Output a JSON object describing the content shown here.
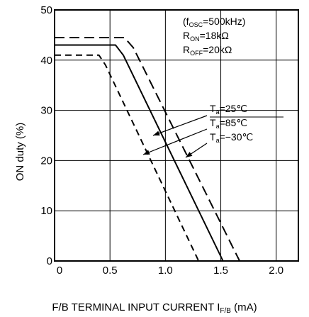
{
  "chart_data": {
    "type": "line",
    "title": "",
    "xlabel": "F/B TERMINAL INPUT CURRENT I",
    "xlabel_sub": "F/B",
    "xlabel_unit": " (mA)",
    "ylabel": "ON duty (%)",
    "xlim": [
      0,
      2.2
    ],
    "ylim": [
      0,
      50
    ],
    "xticks": [
      0,
      0.5,
      1.0,
      1.5,
      2.0
    ],
    "xtick_labels": [
      "0",
      "0.5",
      "1.0",
      "1.5",
      "2.0"
    ],
    "yticks": [
      0,
      10,
      20,
      30,
      40,
      50
    ],
    "ytick_labels": [
      "0",
      "10",
      "20",
      "30",
      "40",
      "50"
    ],
    "grid": true,
    "conditions": [
      {
        "base": "(f",
        "sub": "OSC",
        "rest": "=500kHz)"
      },
      {
        "base": "R",
        "sub": "ON",
        "rest": "=18kΩ"
      },
      {
        "base": "R",
        "sub": "OFF",
        "rest": "=20kΩ"
      }
    ],
    "series": [
      {
        "name": "Ta=25℃",
        "name_base": "T",
        "name_sub": "a",
        "name_rest": "=25℃",
        "style": "solid",
        "x": [
          0.0,
          0.55,
          0.62,
          1.52
        ],
        "y": [
          43.0,
          43.0,
          41.0,
          0.0
        ]
      },
      {
        "name": "Ta=85℃",
        "name_base": "T",
        "name_sub": "a",
        "name_rest": "=85℃",
        "style": "dash",
        "x": [
          0.0,
          0.4,
          0.46,
          1.3
        ],
        "y": [
          41.0,
          41.0,
          39.0,
          0.0
        ]
      },
      {
        "name": "Ta=−30℃",
        "name_base": "T",
        "name_sub": "a",
        "name_rest": "=−30℃",
        "style": "longdash",
        "x": [
          0.0,
          0.63,
          0.71,
          1.67
        ],
        "y": [
          44.5,
          44.5,
          42.5,
          0.0
        ]
      }
    ]
  }
}
